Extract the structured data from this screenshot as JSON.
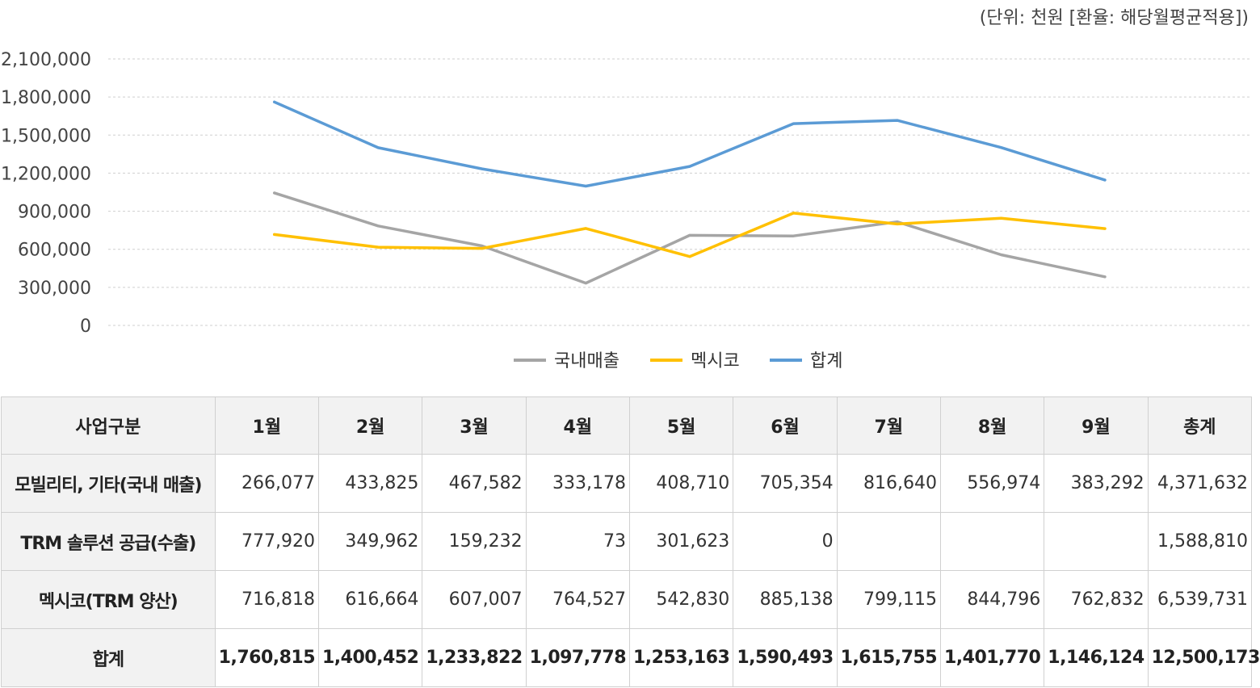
{
  "unit_note": "(단위: 천원 [환율: 해당월평균적용])",
  "chart_data": {
    "type": "line",
    "categories": [
      "1월",
      "2월",
      "3월",
      "4월",
      "5월",
      "6월",
      "7월",
      "8월",
      "9월"
    ],
    "ylim": [
      0,
      2100000
    ],
    "yticks": [
      0,
      300000,
      600000,
      900000,
      1200000,
      1500000,
      1800000,
      2100000
    ],
    "ytick_labels": [
      "0",
      "300,000",
      "600,000",
      "900,000",
      "1,200,000",
      "1,500,000",
      "1,800,000",
      "2,100,000"
    ],
    "grid": true,
    "legend_position": "bottom",
    "series": [
      {
        "name": "국내매출",
        "color": "#a5a5a5",
        "values": [
          1044000,
          783787,
          626814,
          333251,
          710333,
          705354,
          816640,
          556974,
          383292
        ]
      },
      {
        "name": "멕시코",
        "color": "#ffc000",
        "values": [
          716818,
          616664,
          607007,
          764527,
          542830,
          885138,
          799115,
          844796,
          762832
        ]
      },
      {
        "name": "합계",
        "color": "#5b9bd5",
        "values": [
          1760815,
          1400452,
          1233822,
          1097778,
          1253163,
          1590493,
          1615755,
          1401770,
          1146124
        ]
      }
    ]
  },
  "table": {
    "headers": [
      "사업구분",
      "1월",
      "2월",
      "3월",
      "4월",
      "5월",
      "6월",
      "7월",
      "8월",
      "9월",
      "총계"
    ],
    "rows": [
      {
        "label": "모빌리티, 기타(국내 매출)",
        "values": [
          "266,077",
          "433,825",
          "467,582",
          "333,178",
          "408,710",
          "705,354",
          "816,640",
          "556,974",
          "383,292",
          "4,371,632"
        ]
      },
      {
        "label": "TRM 솔루션 공급(수출)",
        "values": [
          "777,920",
          "349,962",
          "159,232",
          "73",
          "301,623",
          "0",
          "",
          "",
          "",
          "1,588,810"
        ]
      },
      {
        "label": "멕시코(TRM 양산)",
        "values": [
          "716,818",
          "616,664",
          "607,007",
          "764,527",
          "542,830",
          "885,138",
          "799,115",
          "844,796",
          "762,832",
          "6,539,731"
        ]
      },
      {
        "label": "합계",
        "values": [
          "1,760,815",
          "1,400,452",
          "1,233,822",
          "1,097,778",
          "1,253,163",
          "1,590,493",
          "1,615,755",
          "1,401,770",
          "1,146,124",
          "12,500,173"
        ],
        "total": true
      }
    ]
  }
}
